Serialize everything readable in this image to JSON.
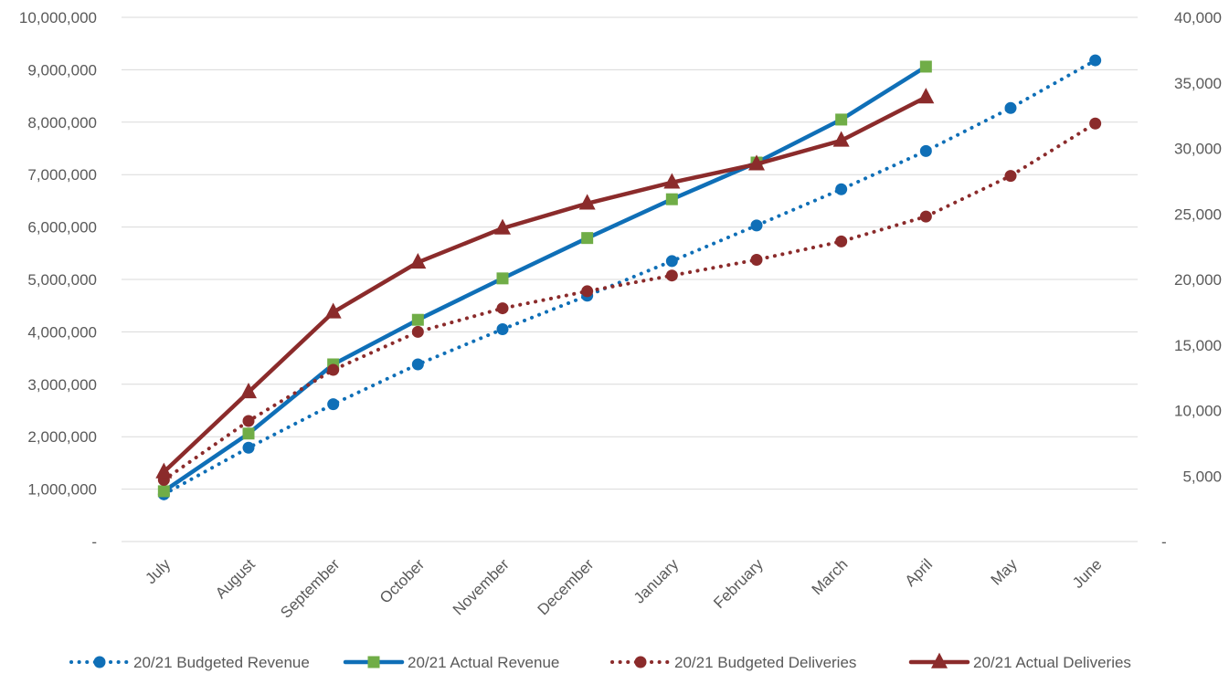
{
  "chart_data": {
    "type": "line",
    "categories": [
      "July",
      "August",
      "September",
      "October",
      "November",
      "December",
      "January",
      "February",
      "March",
      "April",
      "May",
      "June"
    ],
    "series": [
      {
        "name": "20/21 Budgeted Revenue",
        "axis": "left",
        "style": "dotted",
        "marker": "circle",
        "color": "#0F6FB7",
        "values": [
          900000,
          1790000,
          2620000,
          3380000,
          4050000,
          4690000,
          5350000,
          6030000,
          6720000,
          7450000,
          8270000,
          9180000
        ]
      },
      {
        "name": "20/21 Actual Revenue",
        "axis": "left",
        "style": "solid",
        "marker": "square",
        "color": "#0F6FB7",
        "marker_color": "#70AD47",
        "values": [
          960000,
          2060000,
          3380000,
          4230000,
          5020000,
          5790000,
          6530000,
          7230000,
          8050000,
          9060000,
          null,
          null
        ]
      },
      {
        "name": "20/21 Budgeted Deliveries",
        "axis": "right",
        "style": "dotted",
        "marker": "circle",
        "color": "#8B2B2B",
        "values": [
          4700,
          9200,
          13100,
          16000,
          17800,
          19100,
          20300,
          21500,
          22900,
          24800,
          27900,
          31900
        ]
      },
      {
        "name": "20/21 Actual Deliveries",
        "axis": "right",
        "style": "solid",
        "marker": "triangle",
        "color": "#8B2B2B",
        "values": [
          5300,
          11400,
          17500,
          21300,
          23900,
          25800,
          27400,
          28800,
          30600,
          33900,
          null,
          null
        ]
      }
    ],
    "y_left": {
      "min": 0,
      "max": 10000000,
      "ticks": [
        0,
        1000000,
        2000000,
        3000000,
        4000000,
        5000000,
        6000000,
        7000000,
        8000000,
        9000000,
        10000000
      ],
      "tick_labels": [
        "-",
        "1,000,000",
        "2,000,000",
        "3,000,000",
        "4,000,000",
        "5,000,000",
        "6,000,000",
        "7,000,000",
        "8,000,000",
        "9,000,000",
        "10,000,000"
      ]
    },
    "y_right": {
      "min": 0,
      "max": 40000,
      "ticks": [
        0,
        5000,
        10000,
        15000,
        20000,
        25000,
        30000,
        35000,
        40000
      ],
      "tick_labels": [
        "-",
        "5,000",
        "10,000",
        "15,000",
        "20,000",
        "25,000",
        "30,000",
        "35,000",
        "40,000"
      ]
    },
    "grid": true,
    "legend_position": "bottom",
    "colors": {
      "blue": "#0F6FB7",
      "red": "#8B2B2B",
      "green": "#70AD47",
      "grid": "#D9D9D9",
      "text": "#595959"
    }
  }
}
